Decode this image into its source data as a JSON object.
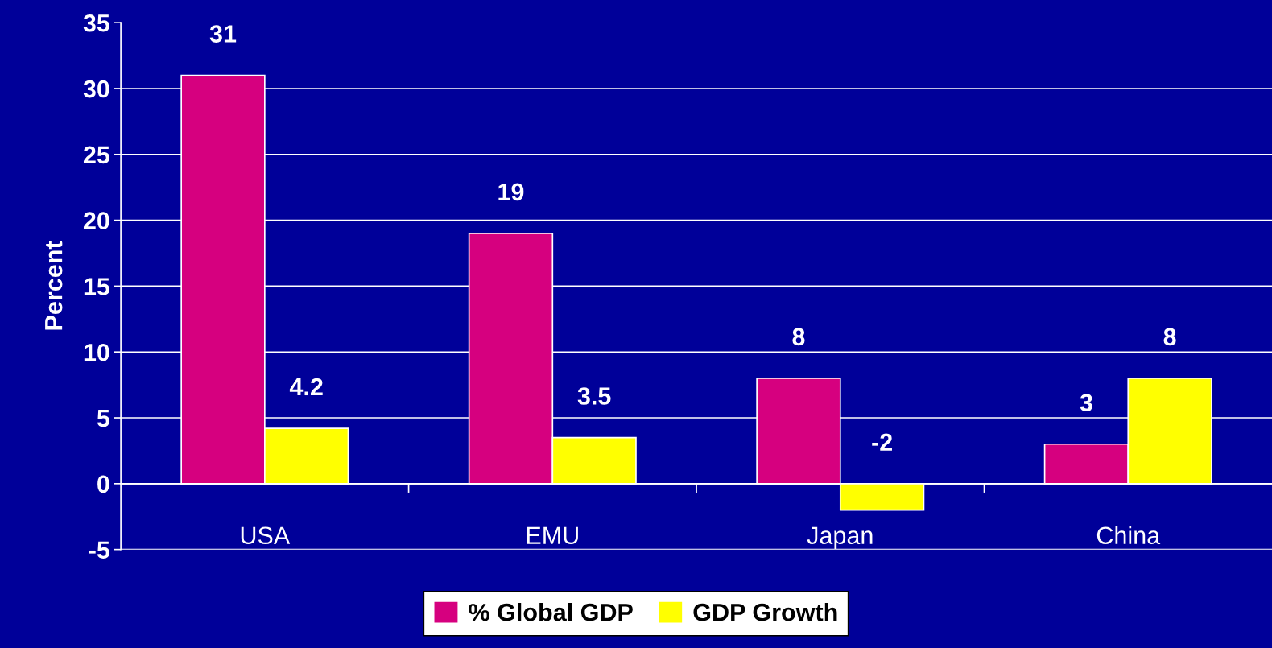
{
  "chart_data": {
    "type": "bar",
    "ylabel": "Percent",
    "categories": [
      "USA",
      "EMU",
      "Japan",
      "China"
    ],
    "series": [
      {
        "name": "% Global GDP",
        "color": "#d6007f",
        "values": [
          31,
          19,
          8,
          3
        ]
      },
      {
        "name": "GDP Growth",
        "color": "#ffff00",
        "values": [
          4.2,
          3.5,
          -2,
          8
        ]
      }
    ],
    "ylim": [
      -5,
      35
    ],
    "yticks": [
      -5,
      0,
      5,
      10,
      15,
      20,
      25,
      30,
      35
    ],
    "grid": "y",
    "legend": "bottom",
    "data_labels": true
  }
}
